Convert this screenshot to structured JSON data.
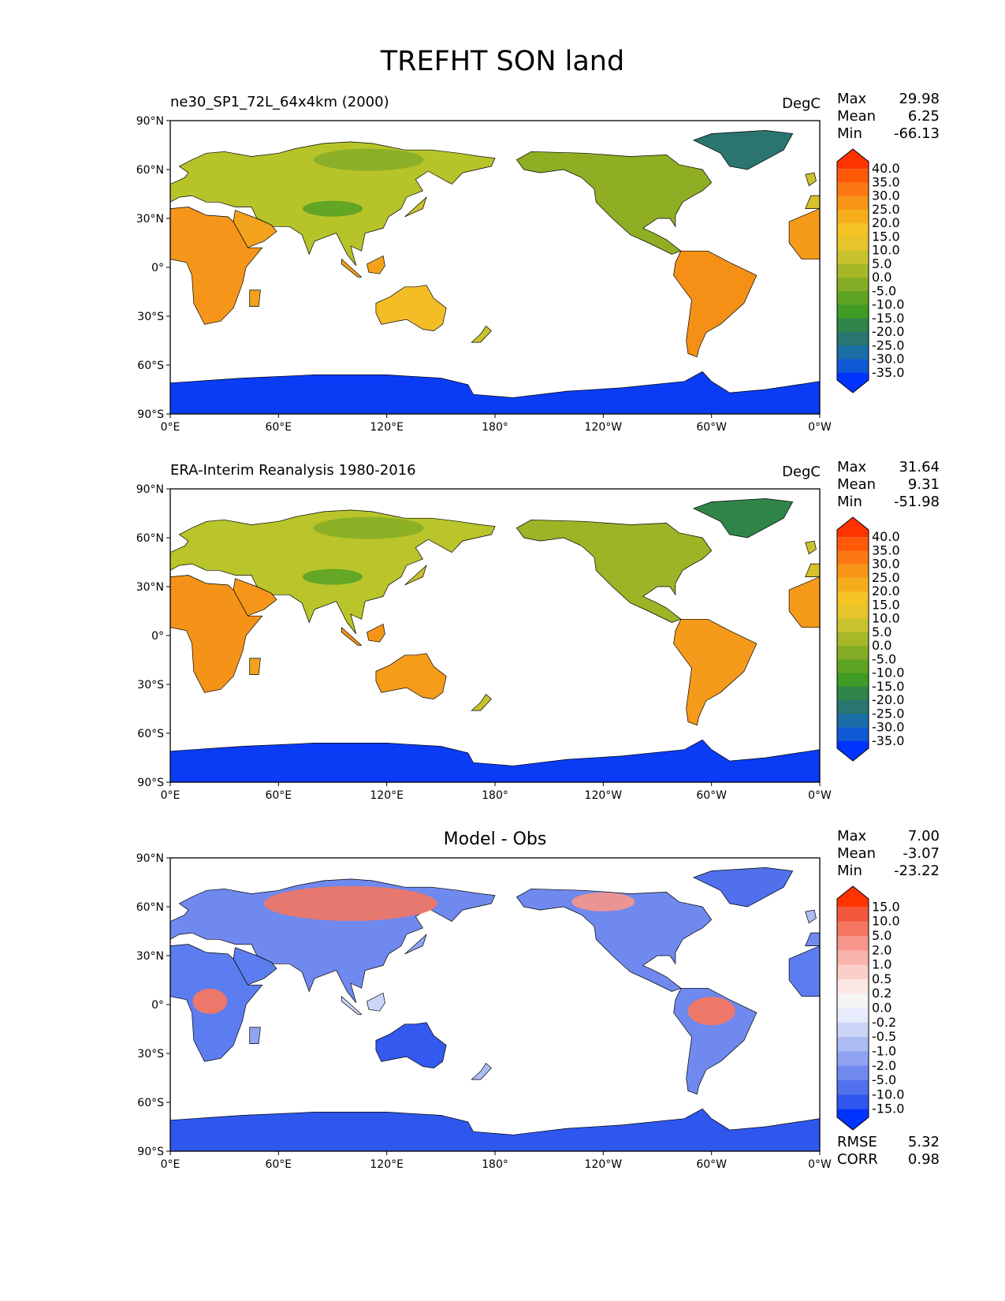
{
  "title": "TREFHT SON land",
  "panels": [
    {
      "title_left": "ne30_SP1_72L_64x4km (2000)",
      "title_right": "DegC",
      "title_center": "",
      "stats": [
        {
          "label": "Max",
          "value": "29.98"
        },
        {
          "label": "Mean",
          "value": "6.25"
        },
        {
          "label": "Min",
          "value": "-66.13"
        }
      ],
      "extra_stats": [],
      "colorbar": {
        "labels": [
          "40.0",
          "35.0",
          "30.0",
          "25.0",
          "20.0",
          "15.0",
          "10.0",
          "5.0",
          "0.0",
          "-5.0",
          "-10.0",
          "-15.0",
          "-20.0",
          "-25.0",
          "-30.0",
          "-35.0"
        ],
        "colors": [
          "#ff3300",
          "#ff5a0a",
          "#fb7812",
          "#f79518",
          "#f6ad1c",
          "#f4c424",
          "#e6c52a",
          "#c8c22e",
          "#a6b828",
          "#84ac24",
          "#5fa324",
          "#3f9a26",
          "#2f8448",
          "#2a7570",
          "#1b6ea5",
          "#0f59d6",
          "#0033ff"
        ]
      }
    },
    {
      "title_left": "ERA-Interim Reanalysis 1980-2016",
      "title_right": "DegC",
      "title_center": "",
      "stats": [
        {
          "label": "Max",
          "value": "31.64"
        },
        {
          "label": "Mean",
          "value": "9.31"
        },
        {
          "label": "Min",
          "value": "-51.98"
        }
      ],
      "extra_stats": [],
      "colorbar": {
        "labels": [
          "40.0",
          "35.0",
          "30.0",
          "25.0",
          "20.0",
          "15.0",
          "10.0",
          "5.0",
          "0.0",
          "-5.0",
          "-10.0",
          "-15.0",
          "-20.0",
          "-25.0",
          "-30.0",
          "-35.0"
        ],
        "colors": [
          "#ff3300",
          "#ff5a0a",
          "#fb7812",
          "#f79518",
          "#f6ad1c",
          "#f4c424",
          "#e6c52a",
          "#c8c22e",
          "#a6b828",
          "#84ac24",
          "#5fa324",
          "#3f9a26",
          "#2f8448",
          "#2a7570",
          "#1b6ea5",
          "#0f59d6",
          "#0033ff"
        ]
      }
    },
    {
      "title_left": "",
      "title_right": "",
      "title_center": "Model - Obs",
      "stats": [
        {
          "label": "Max",
          "value": "7.00"
        },
        {
          "label": "Mean",
          "value": "-3.07"
        },
        {
          "label": "Min",
          "value": "-23.22"
        }
      ],
      "extra_stats": [
        {
          "label": "RMSE",
          "value": "5.32"
        },
        {
          "label": "CORR",
          "value": "0.98"
        }
      ],
      "colorbar": {
        "labels": [
          "15.0",
          "10.0",
          "5.0",
          "2.0",
          "1.0",
          "0.5",
          "0.2",
          "0.0",
          "-0.2",
          "-0.5",
          "-1.0",
          "-2.0",
          "-5.0",
          "-10.0",
          "-15.0"
        ],
        "colors": [
          "#ff3300",
          "#f2563c",
          "#f47762",
          "#f7968a",
          "#f9b4ac",
          "#fbcfc9",
          "#fde7e4",
          "#f7f4f4",
          "#e8ebfb",
          "#cbd5f8",
          "#adbdf4",
          "#8fa3f1",
          "#6f89ee",
          "#5070ec",
          "#2f57ee",
          "#0033ff"
        ]
      }
    }
  ],
  "axes": {
    "y_ticks": [
      "90°N",
      "60°N",
      "30°N",
      "0°",
      "30°S",
      "60°S",
      "90°S"
    ],
    "x_ticks": [
      "0°E",
      "60°E",
      "120°E",
      "180°",
      "120°W",
      "60°W",
      "0°W"
    ]
  },
  "land_colors": {
    "antarctica": "#0a3cf5",
    "greenland": "#2a7570"
  }
}
